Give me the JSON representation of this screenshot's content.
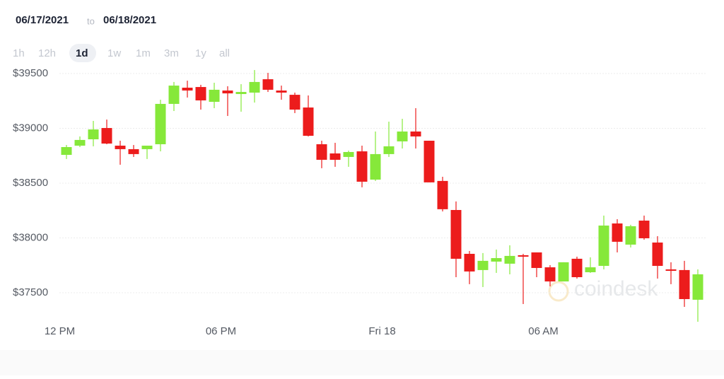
{
  "header": {
    "from": "06/17/2021",
    "to_word": "to",
    "to": "06/18/2021"
  },
  "range_buttons": {
    "options": [
      "1h",
      "12h",
      "1d",
      "1w",
      "1m",
      "3m",
      "1y",
      "all"
    ],
    "selected_index": 2
  },
  "watermark": "coindesk",
  "chart_data": {
    "type": "candlestick",
    "categories": [
      "12 PM",
      null,
      null,
      null,
      null,
      null,
      null,
      null,
      null,
      null,
      null,
      null,
      "06 PM",
      null,
      null,
      null,
      null,
      null,
      null,
      null,
      null,
      null,
      null,
      null,
      "Fri 18",
      null,
      null,
      null,
      null,
      null,
      null,
      null,
      null,
      null,
      null,
      null,
      "06 AM",
      null,
      null,
      null,
      null,
      null,
      null,
      null,
      null,
      null,
      null,
      null
    ],
    "open": [
      38758,
      38842,
      38900,
      39003,
      38842,
      38810,
      38810,
      38855,
      39223,
      39371,
      39377,
      39242,
      39345,
      39313,
      39326,
      39448,
      39345,
      39306,
      39190,
      38855,
      38771,
      38739,
      38790,
      38532,
      38765,
      38881,
      38971,
      38887,
      38520,
      38255,
      37855,
      37707,
      37784,
      37765,
      37842,
      37868,
      37732,
      37603,
      37810,
      37687,
      37745,
      38132,
      37939,
      38158,
      37958,
      37713,
      37707,
      37436
    ],
    "high": [
      38848,
      38926,
      39068,
      39080,
      38887,
      38848,
      38842,
      39261,
      39423,
      39435,
      39397,
      39416,
      39384,
      39403,
      39532,
      39506,
      39390,
      39326,
      39300,
      38887,
      38868,
      38797,
      38842,
      38971,
      39061,
      39087,
      39184,
      38887,
      38558,
      38333,
      37881,
      37862,
      37894,
      37933,
      37855,
      37868,
      37752,
      37778,
      37829,
      37823,
      38204,
      38171,
      38120,
      38204,
      38016,
      37778,
      37791,
      37713
    ],
    "low": [
      38720,
      38829,
      38836,
      38855,
      38668,
      38739,
      38720,
      38790,
      39158,
      39281,
      39171,
      39184,
      39113,
      39152,
      39235,
      39332,
      39261,
      39139,
      38926,
      38636,
      38649,
      38649,
      38462,
      38520,
      38739,
      38816,
      38816,
      38507,
      38242,
      37642,
      37578,
      37552,
      37681,
      37668,
      37397,
      37642,
      37558,
      37603,
      37629,
      37681,
      37713,
      37868,
      37913,
      37984,
      37629,
      37578,
      37371,
      37235
    ],
    "close": [
      38829,
      38894,
      38990,
      38861,
      38810,
      38765,
      38842,
      39223,
      39390,
      39345,
      39255,
      39352,
      39319,
      39332,
      39423,
      39352,
      39326,
      39171,
      38932,
      38713,
      38713,
      38784,
      38513,
      38765,
      38836,
      38971,
      38926,
      38507,
      38262,
      37810,
      37694,
      37791,
      37816,
      37836,
      37829,
      37726,
      37603,
      37778,
      37642,
      37732,
      38113,
      37965,
      38107,
      37997,
      37745,
      37700,
      37442,
      37668
    ],
    "up_color": "#86e83a",
    "down_color": "#ec1c1c",
    "ylim": [
      37200,
      39600
    ],
    "yticks": [
      {
        "value": 37500,
        "label": "$37500"
      },
      {
        "value": 38000,
        "label": "$38000"
      },
      {
        "value": 38500,
        "label": "$38500"
      },
      {
        "value": 39000,
        "label": "$39000"
      },
      {
        "value": 39500,
        "label": "$39500"
      }
    ],
    "grid": true
  }
}
